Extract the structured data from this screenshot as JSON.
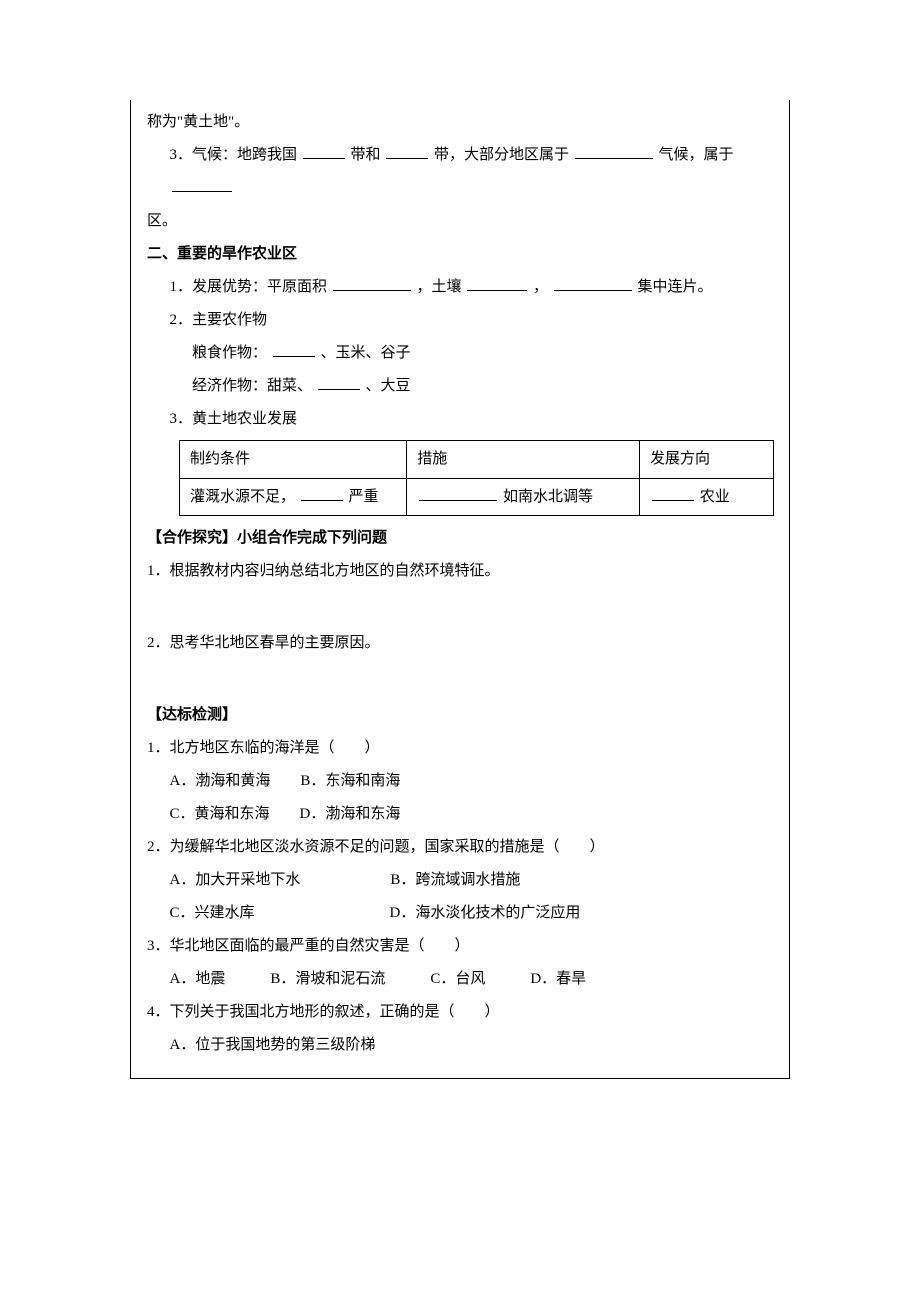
{
  "intro": {
    "line1": "称为\"黄土地\"。",
    "line2a": "3．气候：地跨我国",
    "line2b": "带和",
    "line2c": "带，大部分地区属于",
    "line2d": "气候，属于",
    "line2e": "区。"
  },
  "section2": {
    "heading": "二、重要的旱作农业区",
    "l1a": "1．发展优势：平原面积",
    "l1b": "，土壤",
    "l1c": "，",
    "l1d": "集中连片。",
    "l2": "2．主要农作物",
    "l2a_a": "粮食作物：",
    "l2a_b": "、玉米、谷子",
    "l2b_a": "经济作物：甜菜、",
    "l2b_b": "、大豆",
    "l3": "3．黄土地农业发展",
    "table": {
      "h1": "制约条件",
      "h2": "措施",
      "h3": "发展方向",
      "r1a": "灌溉水源不足，",
      "r1b": "严重",
      "r2a": "如南水北调等",
      "r3a": "农业"
    }
  },
  "explore": {
    "heading": "【合作探究】小组合作完成下列问题",
    "q1": "1．根据教材内容归纳总结北方地区的自然环境特征。",
    "q2": "2．思考华北地区春旱的主要原因。"
  },
  "test": {
    "heading": "【达标检测】",
    "q1": "1．北方地区东临的海洋是（　　）",
    "q1a": "A．渤海和黄海　　B．东海和南海",
    "q1b": "C．黄海和东海　　D．渤海和东海",
    "q2": "2．为缓解华北地区淡水资源不足的问题，国家采取的措施是（　　）",
    "q2a": "A．加大开采地下水　　　　　　B．跨流域调水措施",
    "q2b": "C．兴建水库　　　　　　　　　D．海水淡化技术的广泛应用",
    "q3": "3．华北地区面临的最严重的自然灾害是（　　）",
    "q3a": "A．地震　　　B．滑坡和泥石流　　　C．台风　　　D．春旱",
    "q4": "4．下列关于我国北方地形的叙述，正确的是（　　）",
    "q4a": "A．位于我国地势的第三级阶梯"
  }
}
